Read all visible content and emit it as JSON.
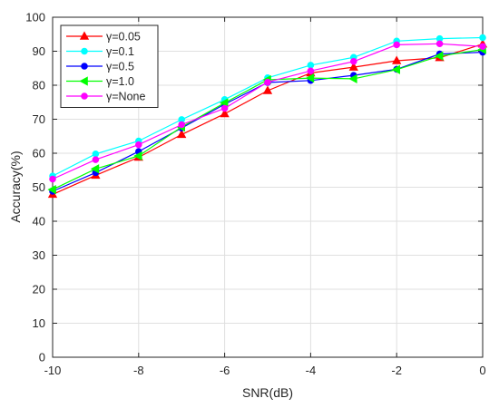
{
  "chart_data": {
    "type": "line",
    "xlabel": "SNR(dB)",
    "ylabel": "Accuracy(%)",
    "xlim": [
      -10,
      0
    ],
    "ylim": [
      0,
      100
    ],
    "xticks": [
      -10,
      -8,
      -6,
      -4,
      -2,
      0
    ],
    "yticks": [
      0,
      10,
      20,
      30,
      40,
      50,
      60,
      70,
      80,
      90,
      100
    ],
    "grid": true,
    "legend_position": "top-left",
    "x": [
      -10,
      -9,
      -8,
      -7,
      -6,
      -5,
      -4,
      -3,
      -2,
      -1,
      0
    ],
    "series": [
      {
        "name": "γ=0.05",
        "color": "#ff0000",
        "marker": "triangle-up",
        "values": [
          47.9,
          53.5,
          58.8,
          65.5,
          71.6,
          78.4,
          83.6,
          85.3,
          87.2,
          88.1,
          92.1
        ]
      },
      {
        "name": "γ=0.1",
        "color": "#00ffff",
        "marker": "circle",
        "values": [
          53.3,
          59.8,
          63.6,
          69.9,
          75.8,
          82.2,
          85.9,
          88.2,
          93.0,
          93.7,
          94.0
        ]
      },
      {
        "name": "γ=0.5",
        "color": "#0000ff",
        "marker": "circle",
        "values": [
          48.8,
          54.3,
          60.5,
          67.4,
          74.4,
          80.8,
          81.4,
          82.9,
          84.7,
          89.2,
          89.7
        ]
      },
      {
        "name": "γ=1.0",
        "color": "#00ff00",
        "marker": "triangle-left",
        "values": [
          49.3,
          55.4,
          59.2,
          67.7,
          74.8,
          81.6,
          82.1,
          81.9,
          84.6,
          88.6,
          90.5
        ]
      },
      {
        "name": "γ=None",
        "color": "#ff00ff",
        "marker": "circle",
        "values": [
          52.4,
          58.1,
          62.5,
          68.4,
          73.2,
          80.9,
          84.2,
          87.0,
          91.9,
          92.2,
          91.4
        ]
      }
    ]
  }
}
